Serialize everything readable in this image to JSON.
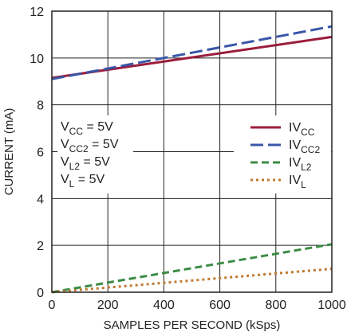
{
  "chart_data": {
    "type": "line",
    "xlabel": "SAMPLES PER SECOND (kSps)",
    "ylabel": "CURRENT (mA)",
    "xlim": [
      0,
      1000
    ],
    "ylim": [
      0,
      12
    ],
    "x_ticks": [
      "0",
      "200",
      "400",
      "600",
      "800",
      "1000"
    ],
    "y_ticks": [
      "0",
      "2",
      "4",
      "6",
      "8",
      "10",
      "12"
    ],
    "grid": true,
    "legend_position": "middle-right",
    "conditions": [
      {
        "base": "V",
        "sub": "CC",
        "rest": " = 5V"
      },
      {
        "base": "V",
        "sub": "CC2",
        "rest": " = 5V"
      },
      {
        "base": "V",
        "sub": "L2",
        "rest": " = 5V"
      },
      {
        "base": "V",
        "sub": "L",
        "rest": " = 5V"
      }
    ],
    "series": [
      {
        "name": "IVCC",
        "base": "IV",
        "sub": "CC",
        "color": "#9b1c3b",
        "dash": "solid",
        "x": [
          0,
          1000
        ],
        "y": [
          9.15,
          10.9
        ]
      },
      {
        "name": "IVCC2",
        "base": "IV",
        "sub": "CC2",
        "color": "#3a56a8",
        "dash": "long-dash",
        "x": [
          0,
          1000
        ],
        "y": [
          9.1,
          11.35
        ]
      },
      {
        "name": "IVL2",
        "base": "IV",
        "sub": "L2",
        "color": "#3c8c46",
        "dash": "dash",
        "x": [
          0,
          1000
        ],
        "y": [
          0,
          2.05
        ]
      },
      {
        "name": "IVL",
        "base": "IV",
        "sub": "L",
        "color": "#c07a2e",
        "dash": "dot",
        "x": [
          0,
          1000
        ],
        "y": [
          0,
          1.0
        ]
      }
    ]
  }
}
